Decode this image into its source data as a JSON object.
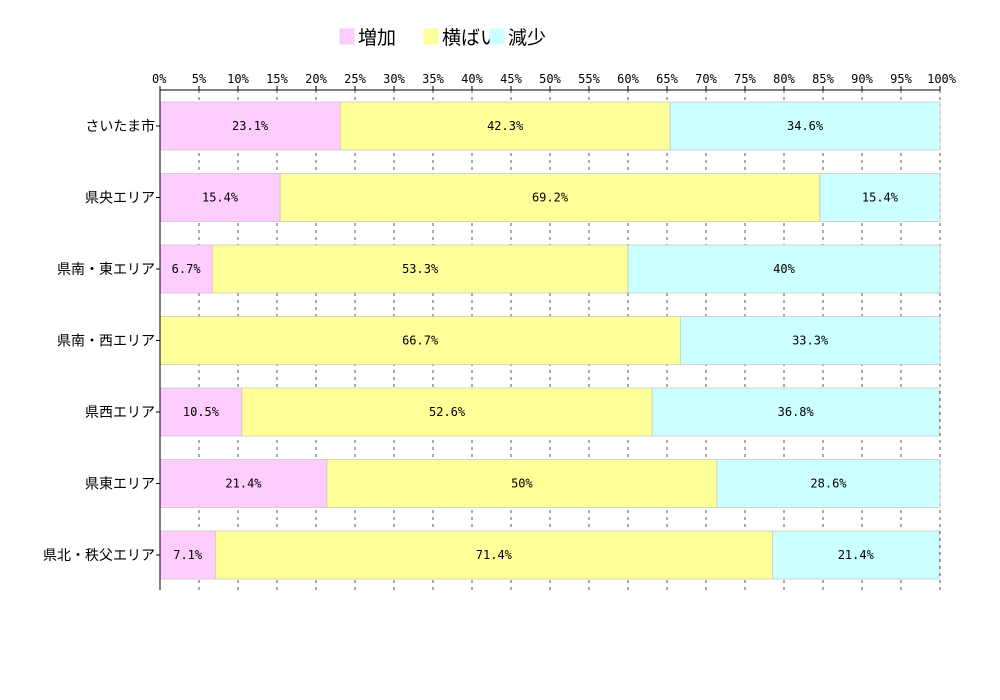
{
  "chart_data": {
    "type": "bar",
    "orientation": "horizontal",
    "stacked": "percent",
    "title": "",
    "xlabel": "",
    "ylabel": "",
    "xlim": [
      0,
      100
    ],
    "x_ticks": [
      "0%",
      "5%",
      "10%",
      "15%",
      "20%",
      "25%",
      "30%",
      "35%",
      "40%",
      "45%",
      "50%",
      "55%",
      "60%",
      "65%",
      "70%",
      "75%",
      "80%",
      "85%",
      "90%",
      "95%",
      "100%"
    ],
    "grid": "vertical dashed",
    "legend_position": "top-center",
    "categories": [
      "さいたま市",
      "県央エリア",
      "県南・東エリア",
      "県南・西エリア",
      "県西エリア",
      "県東エリア",
      "県北・秩父エリア"
    ],
    "series": [
      {
        "name": "増加",
        "color": "#ffccff",
        "values": [
          23.1,
          15.4,
          6.7,
          0,
          10.5,
          21.4,
          7.1
        ],
        "labels": [
          "23.1%",
          "15.4%",
          "6.7%",
          "",
          "10.5%",
          "21.4%",
          "7.1%"
        ]
      },
      {
        "name": "横ばい",
        "color": "#ffff99",
        "values": [
          42.3,
          69.2,
          53.3,
          66.7,
          52.6,
          50,
          71.4
        ],
        "labels": [
          "42.3%",
          "69.2%",
          "53.3%",
          "66.7%",
          "52.6%",
          "50%",
          "71.4%"
        ]
      },
      {
        "name": "減少",
        "color": "#ccffff",
        "values": [
          34.6,
          15.4,
          40,
          33.3,
          36.8,
          28.6,
          21.4
        ],
        "labels": [
          "34.6%",
          "15.4%",
          "40%",
          "33.3%",
          "36.8%",
          "28.6%",
          "21.4%"
        ]
      }
    ]
  }
}
